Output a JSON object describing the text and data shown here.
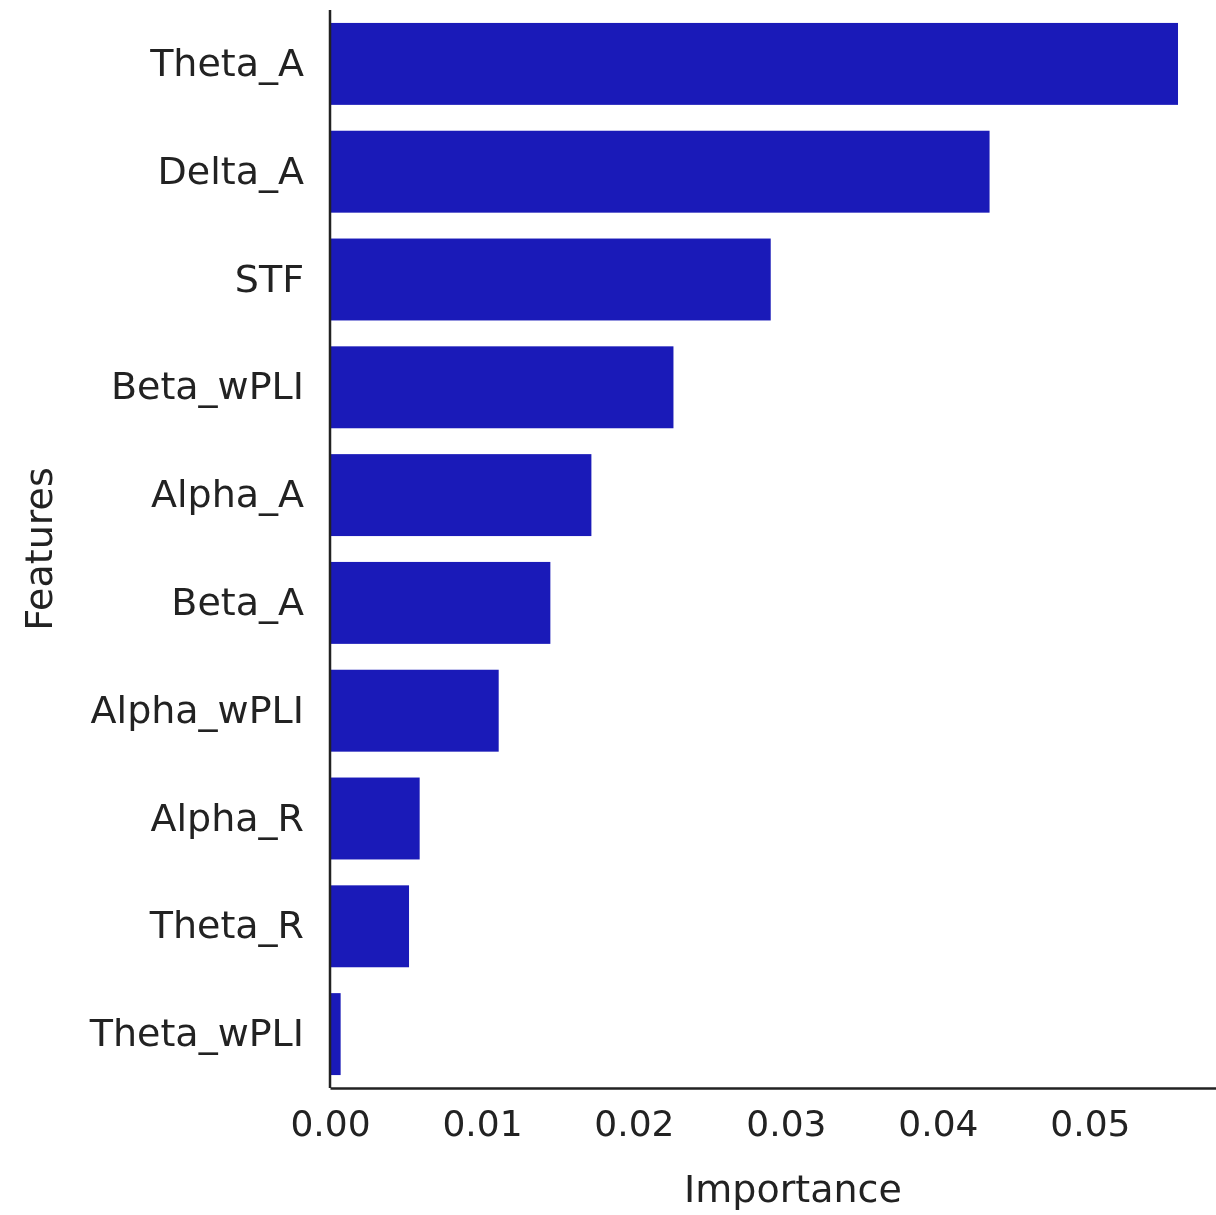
{
  "chart_data": {
    "type": "bar",
    "orientation": "horizontal",
    "xlabel": "Importance",
    "ylabel": "Features",
    "categories": [
      "Theta_A",
      "Delta_A",
      "STF",
      "Beta_wPLI",
      "Alpha_A",
      "Beta_A",
      "Alpha_wPLI",
      "Alpha_R",
      "Theta_R",
      "Theta_wPLI"
    ],
    "values": [
      0.0558,
      0.0434,
      0.029,
      0.0226,
      0.0172,
      0.0145,
      0.0111,
      0.0059,
      0.0052,
      0.0007
    ],
    "color": "#1a1ab8",
    "xlim": [
      0,
      0.0583
    ],
    "xticks": [
      {
        "value": 0,
        "label": "0.00"
      },
      {
        "value": 0.01,
        "label": "0.01"
      },
      {
        "value": 0.02,
        "label": "0.02"
      },
      {
        "value": 0.03,
        "label": "0.03"
      },
      {
        "value": 0.04,
        "label": "0.04"
      },
      {
        "value": 0.05,
        "label": "0.05"
      }
    ],
    "grid": false
  }
}
